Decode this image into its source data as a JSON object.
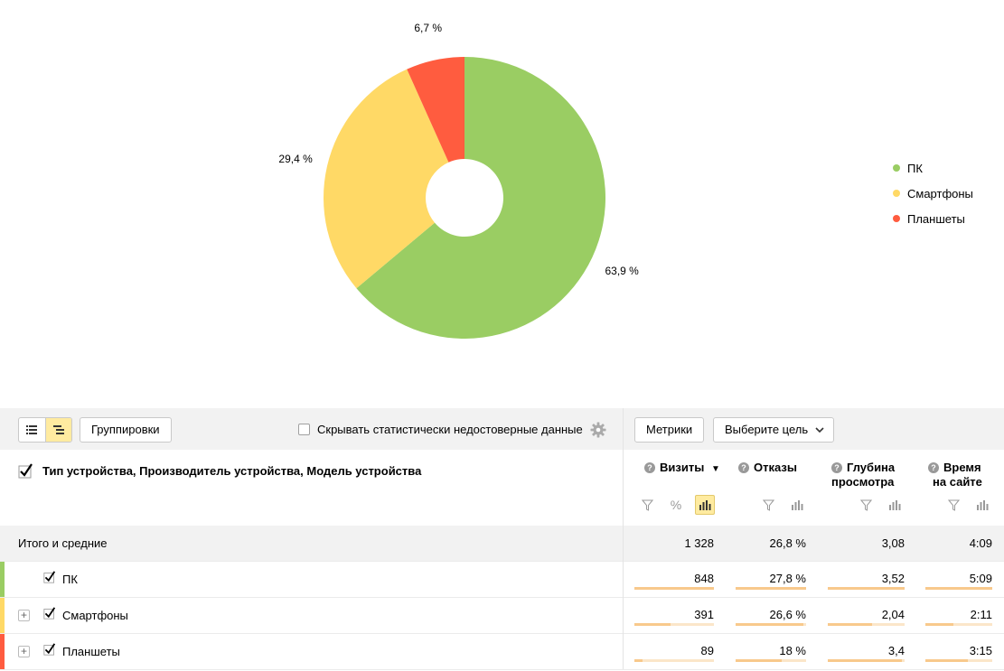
{
  "chart_data": {
    "type": "pie",
    "title": "",
    "slices": [
      {
        "label": "ПК",
        "value": 63.9,
        "display": "63,9 %",
        "color": "#9acd63"
      },
      {
        "label": "Смартфоны",
        "value": 29.4,
        "display": "29,4 %",
        "color": "#ffd966"
      },
      {
        "label": "Планшеты",
        "value": 6.7,
        "display": "6,7 %",
        "color": "#ff5c3f"
      }
    ],
    "donut": true,
    "legend_position": "right"
  },
  "toolbar": {
    "groupings_label": "Группировки",
    "hide_stat_label": "Скрывать статистически недостоверные данные",
    "metrics_label": "Метрики",
    "goal_select_label": "Выберите цель"
  },
  "table": {
    "dimension_title": "Тип устройства, Производитель устройства, Модель устройства",
    "columns": [
      {
        "line1": "Визиты",
        "line2": "",
        "sorted": "▼"
      },
      {
        "line1": "Отказы",
        "line2": ""
      },
      {
        "line1": "Глубина",
        "line2": "просмотра"
      },
      {
        "line1": "Время",
        "line2": "на сайте"
      }
    ],
    "percent_sign": "%",
    "totals": {
      "label": "Итого и средние",
      "values": [
        "1 328",
        "26,8 %",
        "3,08",
        "4:09"
      ]
    },
    "rows": [
      {
        "label": "ПК",
        "color": "#9acd63",
        "expandable": false,
        "values": [
          "848",
          "27,8 %",
          "3,52",
          "5:09"
        ],
        "fractions": [
          1.0,
          1.0,
          1.0,
          1.0
        ]
      },
      {
        "label": "Смартфоны",
        "color": "#ffd966",
        "expandable": true,
        "values": [
          "391",
          "26,6 %",
          "2,04",
          "2:11"
        ],
        "fractions": [
          0.46,
          0.96,
          0.58,
          0.42
        ]
      },
      {
        "label": "Планшеты",
        "color": "#ff5c3f",
        "expandable": true,
        "values": [
          "89",
          "18 %",
          "3,4",
          "3:15"
        ],
        "fractions": [
          0.1,
          0.65,
          0.97,
          0.63
        ]
      }
    ]
  }
}
